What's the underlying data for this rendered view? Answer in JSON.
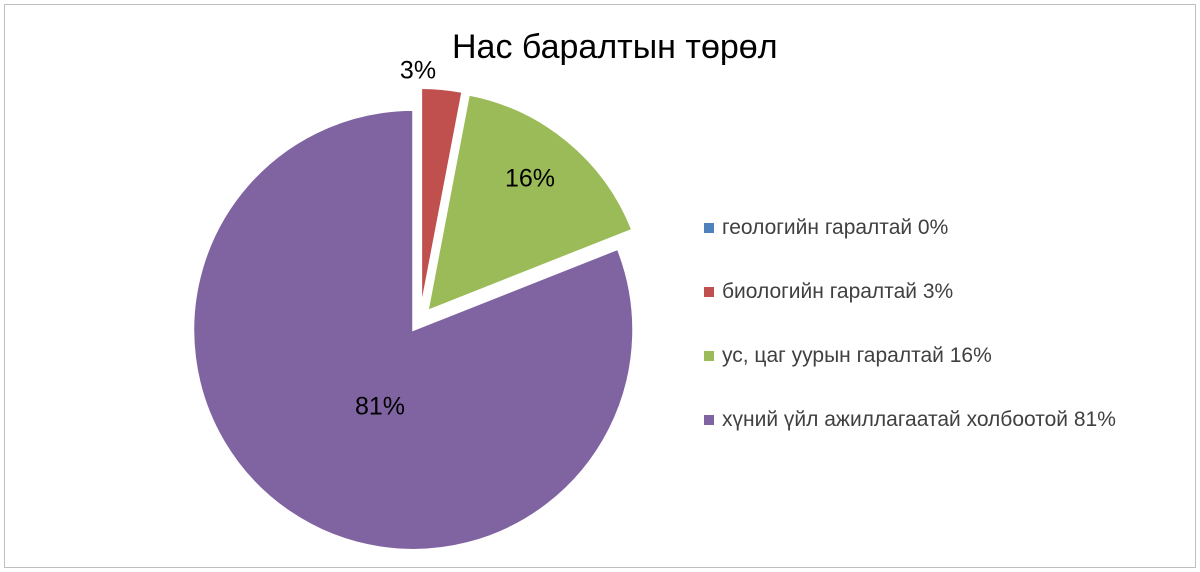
{
  "chart_data": {
    "type": "pie",
    "title": "Нас баралтын төрөл",
    "categories": [
      "геологийн гаралтай 0%",
      "биологийн гаралтай 3%",
      "ус, цаг уурын гаралтай 16%",
      "хүний үйл ажиллагаатай холбоотой 81%"
    ],
    "values": [
      0,
      3,
      16,
      81
    ],
    "data_labels": [
      "",
      "3%",
      "16%",
      "81%"
    ],
    "colors": [
      "#4f81bd",
      "#c0504d",
      "#9bbb59",
      "#8064a2"
    ],
    "legend_position": "right",
    "exploded": true
  }
}
